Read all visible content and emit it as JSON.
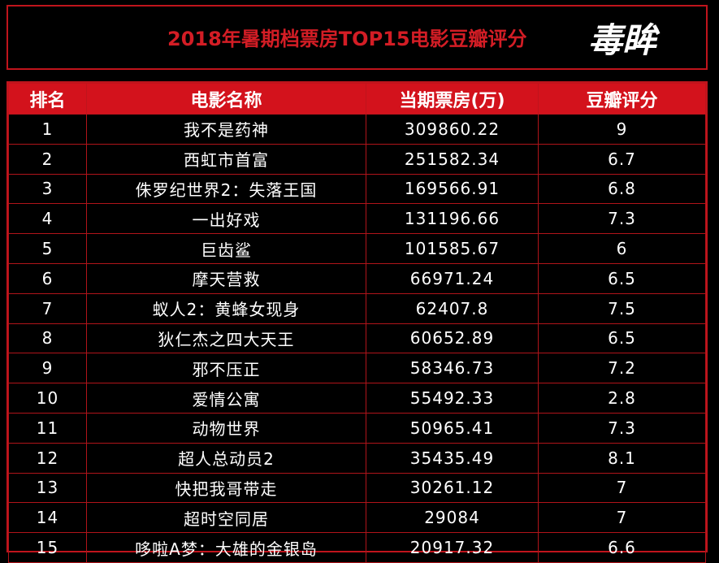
{
  "header": {
    "title": "2018年暑期档票房TOP15电影豆瓣评分",
    "logo_text": "毒眸"
  },
  "colors": {
    "accent_red": "#d3121c",
    "background": "#000000",
    "text": "#ffffff"
  },
  "chart_data": {
    "type": "table",
    "title": "2018年暑期档票房TOP15电影豆瓣评分",
    "columns": [
      "排名",
      "电影名称",
      "当期票房(万)",
      "豆瓣评分"
    ],
    "rows": [
      [
        "1",
        "我不是药神",
        "309860.22",
        "9"
      ],
      [
        "2",
        "西虹市首富",
        "251582.34",
        "6.7"
      ],
      [
        "3",
        "侏罗纪世界2：失落王国",
        "169566.91",
        "6.8"
      ],
      [
        "4",
        "一出好戏",
        "131196.66",
        "7.3"
      ],
      [
        "5",
        "巨齿鲨",
        "101585.67",
        "6"
      ],
      [
        "6",
        "摩天营救",
        "66971.24",
        "6.5"
      ],
      [
        "7",
        "蚁人2：黄蜂女现身",
        "62407.8",
        "7.5"
      ],
      [
        "8",
        "狄仁杰之四大天王",
        "60652.89",
        "6.5"
      ],
      [
        "9",
        "邪不压正",
        "58346.73",
        "7.2"
      ],
      [
        "10",
        "爱情公寓",
        "55492.33",
        "2.8"
      ],
      [
        "11",
        "动物世界",
        "50965.41",
        "7.3"
      ],
      [
        "12",
        "超人总动员2",
        "35435.49",
        "8.1"
      ],
      [
        "13",
        "快把我哥带走",
        "30261.12",
        "7"
      ],
      [
        "14",
        "超时空同居",
        "29084",
        "7"
      ],
      [
        "15",
        "哆啦A梦：大雄的金银岛",
        "20917.32",
        "6.6"
      ]
    ]
  }
}
